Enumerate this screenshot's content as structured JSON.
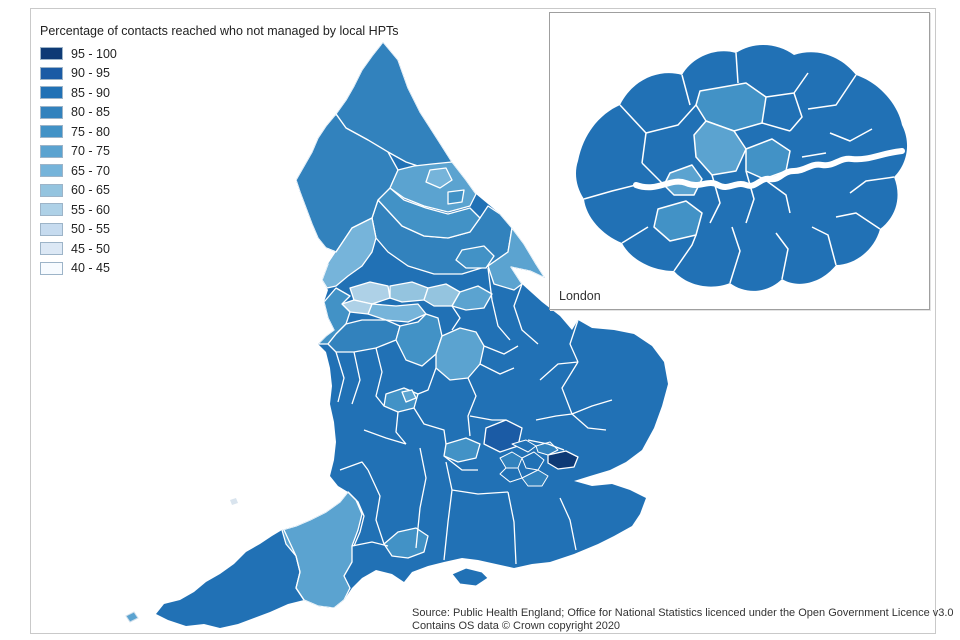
{
  "title": "Percentage of contacts reached who not managed by local HPTs",
  "legend": {
    "items": [
      {
        "label": "95 - 100",
        "color": "#0e3a75"
      },
      {
        "label": "90 - 95",
        "color": "#1b5ba5"
      },
      {
        "label": "85 - 90",
        "color": "#2171b5"
      },
      {
        "label": "80 - 85",
        "color": "#3282bd"
      },
      {
        "label": "75 - 80",
        "color": "#4292c6"
      },
      {
        "label": "70 - 75",
        "color": "#5ba3d0"
      },
      {
        "label": "65 - 70",
        "color": "#76b4da"
      },
      {
        "label": "60 - 65",
        "color": "#94c4df"
      },
      {
        "label": "55 - 60",
        "color": "#aed1e7"
      },
      {
        "label": "50 - 55",
        "color": "#c6dbef"
      },
      {
        "label": "45 - 50",
        "color": "#dce8f5"
      },
      {
        "label": "40 - 45",
        "color": "#f7fbff"
      }
    ]
  },
  "inset": {
    "label": "London"
  },
  "source": {
    "line1": "Source: Public Health England; Office for National Statistics licenced under the Open Government Licence v3.0",
    "line2": "Contains OS data © Crown copyright 2020"
  },
  "colors": {
    "region_border": "#ffffff",
    "frame_border": "#c9c9c9",
    "inset_border": "#9f9f9f",
    "text": "#222222"
  }
}
